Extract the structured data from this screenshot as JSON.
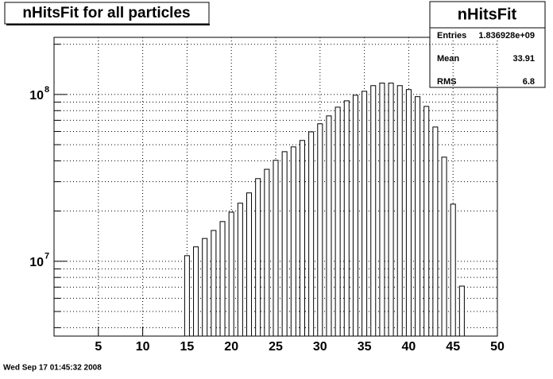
{
  "chart_data": {
    "type": "bar",
    "title": "nHitsFit for all particles",
    "categories": [
      15,
      16,
      17,
      18,
      19,
      20,
      21,
      22,
      23,
      24,
      25,
      26,
      27,
      28,
      29,
      30,
      31,
      32,
      33,
      34,
      35,
      36,
      37,
      38,
      39,
      40,
      41,
      42,
      43,
      44,
      45,
      46
    ],
    "values": [
      10800000,
      12200000,
      13700000,
      15300000,
      17300000,
      19700000,
      22300000,
      25700000,
      31300000,
      35600000,
      40300000,
      45400000,
      48500000,
      53000000,
      59700000,
      66700000,
      74400000,
      83900000,
      91600000,
      99000000,
      104500000,
      113000000,
      117000000,
      117000000,
      113000000,
      107000000,
      97000000,
      84800000,
      63800000,
      42100000,
      22000000,
      7100000
    ],
    "color": "#ffffff",
    "xlim": [
      0,
      50
    ],
    "xticks": [
      5,
      10,
      15,
      20,
      25,
      30,
      35,
      40,
      45,
      50
    ],
    "ylim": [
      3560000,
      220000000
    ],
    "log_y": true,
    "yticks": [
      {
        "value": 10000000,
        "label": "10",
        "exponent": "7"
      },
      {
        "value": 100000000,
        "label": "10",
        "exponent": "8"
      }
    ],
    "yminorticks": [
      4000000,
      5000000,
      6000000,
      7000000,
      8000000,
      9000000,
      20000000,
      30000000,
      40000000,
      50000000,
      60000000,
      70000000,
      80000000,
      90000000,
      200000000
    ],
    "grid": true,
    "stats": {
      "title": "nHitsFit",
      "rows": [
        [
          "Entries",
          "1.836928e+09"
        ],
        [
          "Mean",
          "33.91"
        ],
        [
          "RMS",
          "6.8"
        ]
      ]
    },
    "footer": "Wed Sep 17 01:45:32 2008"
  }
}
